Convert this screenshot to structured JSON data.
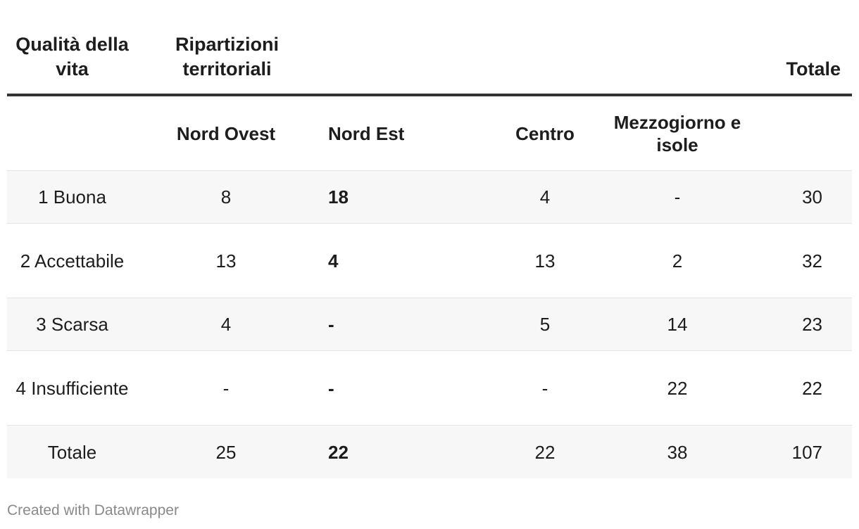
{
  "chart_data": {
    "type": "table",
    "header": {
      "col1": "Qualità della vita",
      "col2": "Ripartizioni territoriali",
      "total": "Totale"
    },
    "subheader": [
      "",
      "Nord Ovest",
      "Nord Est",
      "Centro",
      "Mezzogiorno e isole",
      ""
    ],
    "rows": [
      {
        "label": "1 Buona",
        "values": [
          "8",
          "18",
          "4",
          "-",
          "30"
        ]
      },
      {
        "label": "2 Accettabile",
        "values": [
          "13",
          "4",
          "13",
          "2",
          "32"
        ]
      },
      {
        "label": "3 Scarsa",
        "values": [
          "4",
          "-",
          "5",
          "14",
          "23"
        ]
      },
      {
        "label": "4 Insufficiente",
        "values": [
          "-",
          "-",
          "-",
          "22",
          "22"
        ]
      },
      {
        "label": "Totale",
        "values": [
          "25",
          "22",
          "22",
          "38",
          "107"
        ]
      }
    ]
  },
  "footer": "Created with Datawrapper"
}
